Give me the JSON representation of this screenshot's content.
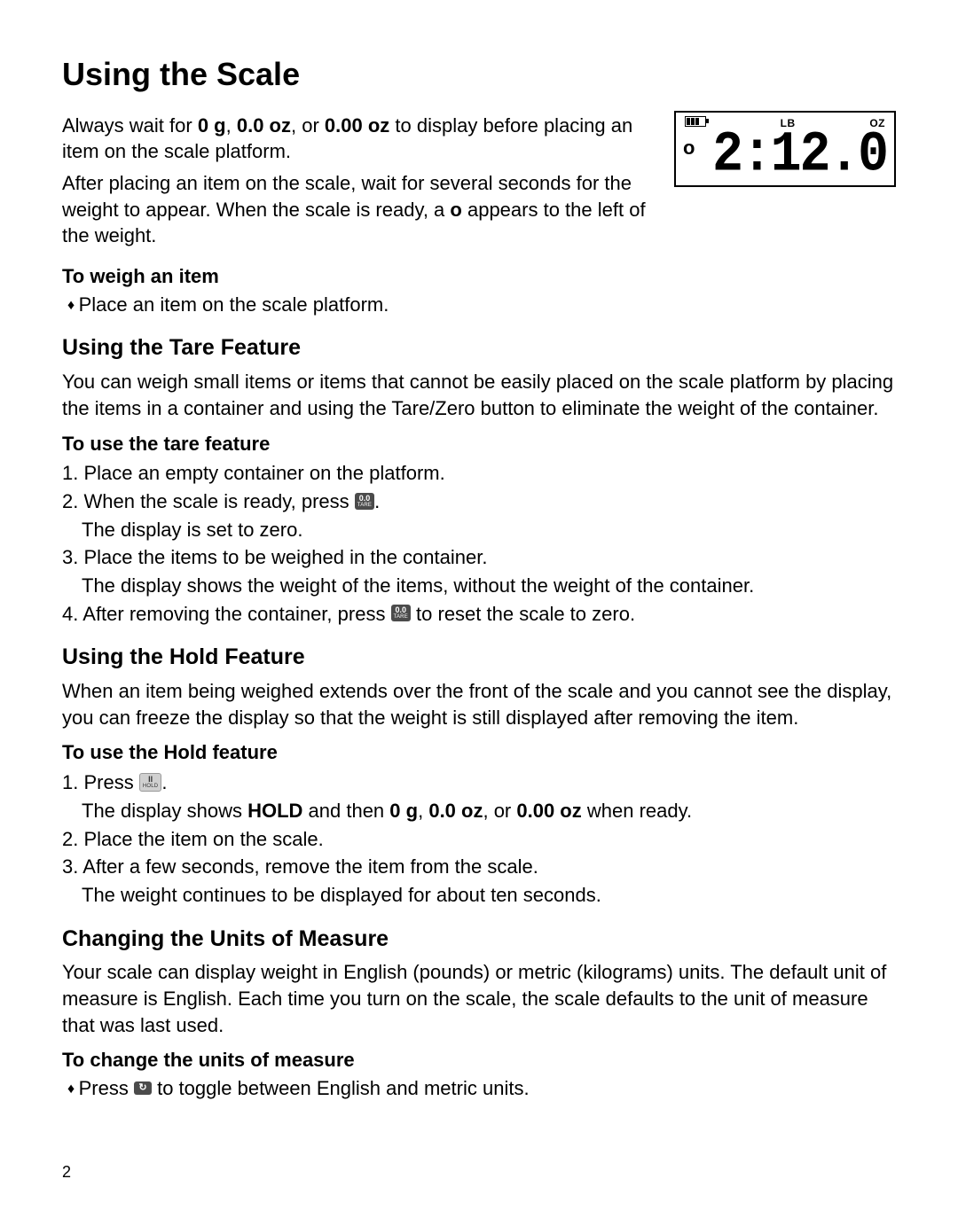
{
  "page": {
    "title": "Using the Scale",
    "number": "2"
  },
  "lcd": {
    "label_lb": "LB",
    "label_oz": "OZ",
    "value": "2:12.0",
    "indicator": "o"
  },
  "intro": {
    "p1_a": "Always wait for ",
    "p1_b1": "0 g",
    "p1_c": ", ",
    "p1_b2": "0.0 oz",
    "p1_d": ", or ",
    "p1_b3": "0.00 oz",
    "p1_e": " to display before placing an item on the scale platform.",
    "p2_a": "After placing an item on the scale, wait for several seconds for the weight to appear. When the scale is ready, a ",
    "p2_b": "o",
    "p2_c": " appears to the left of the weight."
  },
  "weigh": {
    "heading": "To weigh an item",
    "item1": "Place an item on the scale platform."
  },
  "tare": {
    "title": "Using the Tare Feature",
    "para": "You can weigh small items or items that cannot be easily placed on the scale platform by placing the items in a container and using the Tare/Zero button to eliminate the weight of the container.",
    "sub": "To use the tare feature",
    "s1": "Place an empty container on the platform.",
    "s2a": "When the scale is ready, press ",
    "s2b": ".",
    "s2_sub": "The display is set to zero.",
    "s3": "Place the items to be weighed in the container.",
    "s3_sub": "The display shows the weight of the items, without the weight of the container.",
    "s4a": "After removing the container, press ",
    "s4b": " to reset the scale to zero."
  },
  "hold": {
    "title": "Using the Hold Feature",
    "para": "When an item being weighed extends over the front of the scale and you cannot see the display, you can freeze the display so that the weight is still displayed after removing the item.",
    "sub": "To use the Hold feature",
    "s1a": "Press ",
    "s1b": ".",
    "s1_sub_a": "The display shows ",
    "s1_sub_b1": "HOLD",
    "s1_sub_c": " and then ",
    "s1_sub_b2": "0 g",
    "s1_sub_d": ", ",
    "s1_sub_b3": "0.0 oz",
    "s1_sub_e": ", or ",
    "s1_sub_b4": "0.00 oz",
    "s1_sub_f": " when ready.",
    "s2": "Place the item on the scale.",
    "s3": "After a few seconds, remove the item from the scale.",
    "s3_sub": "The weight continues to be displayed for about ten seconds."
  },
  "units": {
    "title": "Changing the Units of Measure",
    "para": "Your scale can display weight in English (pounds) or metric (kilograms) units. The default unit of measure is English. Each time you turn on the scale, the scale defaults to the unit of measure that was last used.",
    "sub": "To change the units of measure",
    "item_a": "Press ",
    "item_b": " to toggle between English and metric units."
  },
  "buttons": {
    "tare_top": "0.0",
    "tare_bot": "TARE",
    "hold_top": "II",
    "hold_bot": "HOLD",
    "unit": "↻"
  }
}
